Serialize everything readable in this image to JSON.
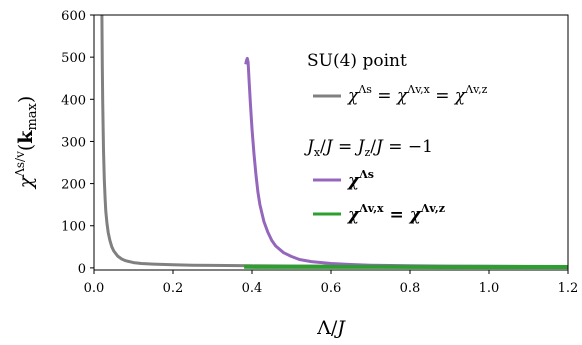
{
  "chart_data": {
    "type": "line",
    "xlabel": "Λ/J",
    "ylabel": "χ^{Λs/v}(k_max)",
    "xlim": [
      0.0,
      1.2
    ],
    "ylim": [
      -5,
      600
    ],
    "x_ticks": [
      "0.0",
      "0.2",
      "0.4",
      "0.6",
      "0.8",
      "1.0",
      "1.2"
    ],
    "y_ticks": [
      "0",
      "100",
      "200",
      "300",
      "400",
      "500",
      "600"
    ],
    "grid": false,
    "legend_placement": "upper right",
    "legend_group_1_title": "SU(4) point",
    "legend_group_2_title": "Jx/J = Jz/J = −1",
    "series": [
      {
        "name": "χΛs = χΛv,x = χΛv,z",
        "color": "#808080",
        "x": [
          0.02,
          0.021,
          0.022,
          0.024,
          0.026,
          0.028,
          0.03,
          0.033,
          0.036,
          0.04,
          0.045,
          0.05,
          0.06,
          0.07,
          0.08,
          0.1,
          0.12,
          0.15,
          0.2,
          0.25,
          0.3,
          0.4,
          0.5,
          0.6,
          0.8,
          1.0,
          1.2
        ],
        "y": [
          600,
          480,
          395,
          280,
          210,
          165,
          134,
          105,
          84,
          66,
          50,
          40,
          28,
          21,
          17,
          12.5,
          10.5,
          9,
          7.5,
          6.5,
          5.8,
          5,
          4.5,
          4.2,
          3.8,
          3.5,
          3.3
        ]
      },
      {
        "name": "χΛs",
        "color": "#9467bd",
        "x": [
          0.384,
          0.386,
          0.388,
          0.39,
          0.393,
          0.396,
          0.4,
          0.405,
          0.41,
          0.415,
          0.42,
          0.43,
          0.44,
          0.45,
          0.46,
          0.48,
          0.5,
          0.52,
          0.55,
          0.6,
          0.65,
          0.7,
          0.8,
          0.9,
          1.0,
          1.1,
          1.2
        ],
        "y": [
          483,
          492,
          497,
          488,
          440,
          390,
          330,
          270,
          220,
          180,
          150,
          110,
          85,
          65,
          52,
          36,
          27,
          20,
          15,
          10.5,
          8,
          6.5,
          5,
          4.2,
          3.7,
          3.4,
          3.2
        ]
      },
      {
        "name": "χΛv,x = χΛv,z",
        "color": "#2ca02c",
        "x": [
          0.38,
          0.5,
          0.7,
          0.9,
          1.1,
          1.2
        ],
        "y": [
          2.5,
          2.4,
          2.3,
          2.2,
          2.1,
          2.0
        ]
      }
    ]
  }
}
